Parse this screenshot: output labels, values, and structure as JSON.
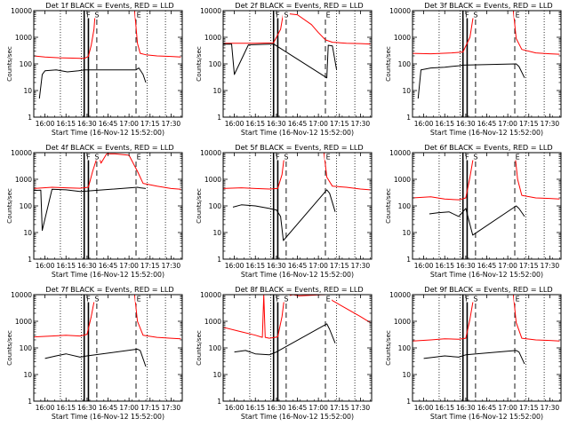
{
  "chart_data": [
    {
      "type": "line",
      "title": "Det 1f BLACK = Events, RED = LLD",
      "xlabel": "Start Time (16-Nov-12 15:52:00)",
      "ylabel": "Counts/sec",
      "yscale": "log",
      "ylim": [
        1,
        10000
      ],
      "ytick_labels": [
        "1",
        "10",
        "100",
        "1000",
        "10000"
      ],
      "xlim": [
        "15:52",
        "17:38"
      ],
      "xtick_labels": [
        "16:00",
        "16:15",
        "16:30",
        "16:45",
        "17:00",
        "17:15",
        "17:30"
      ],
      "markers": {
        "labels": [
          "F",
          "S",
          "E"
        ],
        "times": [
          "16:31",
          "16:37",
          "17:07"
        ],
        "solid_lines": [
          "16:28",
          "16:31"
        ],
        "dashed_lines": [
          "16:37",
          "17:05"
        ],
        "dotted_lines": [
          "16:11",
          "16:26",
          "17:13",
          "17:26"
        ]
      },
      "series": [
        {
          "color": "#ff0000",
          "x": [
            "15:52",
            "16:00",
            "16:10",
            "16:20",
            "16:28",
            "16:31",
            "16:33",
            "16:35",
            "16:36",
            "17:04",
            "17:06",
            "17:08",
            "17:12",
            "17:20",
            "17:30",
            "17:37"
          ],
          "y": [
            200,
            180,
            170,
            165,
            160,
            190,
            500,
            2000,
            10000,
            10000,
            600,
            250,
            220,
            200,
            190,
            180
          ]
        },
        {
          "color": "#000000",
          "x": [
            "15:56",
            "15:58",
            "16:00",
            "16:08",
            "16:16",
            "16:24",
            "16:28",
            "17:05",
            "17:07",
            "17:10",
            "17:12"
          ],
          "y": [
            5,
            40,
            55,
            60,
            50,
            55,
            60,
            60,
            70,
            40,
            20
          ]
        }
      ]
    },
    {
      "type": "line",
      "title": "Det 2f BLACK = Events, RED = LLD",
      "xlabel": "Start Time (16-Nov-12 15:52:00)",
      "ylabel": "Counts/sec",
      "yscale": "log",
      "ylim": [
        1,
        10000
      ],
      "ytick_labels": [
        "1",
        "10",
        "100",
        "1000",
        "10000"
      ],
      "xlim": [
        "15:52",
        "17:38"
      ],
      "xtick_labels": [
        "16:00",
        "16:15",
        "16:30",
        "16:45",
        "17:00",
        "17:15",
        "17:30"
      ],
      "markers": {
        "labels": [
          "F",
          "S",
          "E"
        ],
        "times": [
          "16:31",
          "16:37",
          "17:07"
        ],
        "solid_lines": [
          "16:28",
          "16:31"
        ],
        "dashed_lines": [
          "16:37",
          "17:05"
        ],
        "dotted_lines": [
          "16:11",
          "16:26",
          "17:13",
          "17:26"
        ]
      },
      "series": [
        {
          "color": "#ff0000",
          "x": [
            "15:52",
            "16:00",
            "16:15",
            "16:28",
            "16:33",
            "16:35",
            "16:45",
            "16:55",
            "17:00",
            "17:05",
            "17:10",
            "17:20",
            "17:30",
            "17:37"
          ],
          "y": [
            600,
            600,
            600,
            620,
            2000,
            8000,
            7000,
            3000,
            1500,
            800,
            650,
            600,
            580,
            560
          ]
        },
        {
          "color": "#000000",
          "x": [
            "15:52",
            "15:58",
            "16:00",
            "16:10",
            "16:20",
            "16:28",
            "17:06",
            "17:07",
            "17:10",
            "17:13"
          ],
          "y": [
            550,
            560,
            40,
            520,
            540,
            560,
            30,
            500,
            470,
            60
          ]
        }
      ]
    },
    {
      "type": "line",
      "title": "Det 3f BLACK = Events, RED = LLD",
      "xlabel": "Start Time (16-Nov-12 15:52:00)",
      "ylabel": "Counts/sec",
      "yscale": "log",
      "ylim": [
        1,
        10000
      ],
      "ytick_labels": [
        "1",
        "10",
        "100",
        "1000",
        "10000"
      ],
      "xlim": [
        "15:52",
        "17:38"
      ],
      "xtick_labels": [
        "16:00",
        "16:15",
        "16:30",
        "16:45",
        "17:00",
        "17:15",
        "17:30"
      ],
      "markers": {
        "labels": [
          "F",
          "S",
          "E"
        ],
        "times": [
          "16:31",
          "16:37",
          "17:07"
        ],
        "solid_lines": [
          "16:28",
          "16:31"
        ],
        "dashed_lines": [
          "16:37",
          "17:05"
        ],
        "dotted_lines": [
          "16:11",
          "16:26",
          "17:13",
          "17:26"
        ]
      },
      "series": [
        {
          "color": "#ff0000",
          "x": [
            "15:52",
            "16:05",
            "16:20",
            "16:28",
            "16:33",
            "16:36",
            "17:04",
            "17:06",
            "17:10",
            "17:20",
            "17:30",
            "17:37"
          ],
          "y": [
            250,
            240,
            260,
            280,
            1000,
            10000,
            10000,
            900,
            350,
            260,
            240,
            230
          ]
        },
        {
          "color": "#000000",
          "x": [
            "15:56",
            "15:58",
            "16:05",
            "16:15",
            "16:25",
            "16:28",
            "17:06",
            "17:08",
            "17:12"
          ],
          "y": [
            5,
            60,
            70,
            75,
            85,
            90,
            100,
            80,
            30
          ]
        }
      ]
    },
    {
      "type": "line",
      "title": "Det 4f BLACK = Events, RED = LLD",
      "xlabel": "Start Time (16-Nov-12 15:52:00)",
      "ylabel": "Counts/sec",
      "yscale": "log",
      "ylim": [
        1,
        10000
      ],
      "ytick_labels": [
        "1",
        "10",
        "100",
        "1000",
        "10000"
      ],
      "xlim": [
        "15:52",
        "17:38"
      ],
      "xtick_labels": [
        "16:00",
        "16:15",
        "16:30",
        "16:45",
        "17:00",
        "17:15",
        "17:30"
      ],
      "markers": {
        "labels": [
          "F",
          "S",
          "E"
        ],
        "times": [
          "16:31",
          "16:37",
          "17:07"
        ],
        "solid_lines": [
          "16:28",
          "16:31"
        ],
        "dashed_lines": [
          "16:37",
          "17:05"
        ],
        "dotted_lines": [
          "16:11",
          "16:26",
          "17:13",
          "17:26"
        ]
      },
      "series": [
        {
          "color": "#ff0000",
          "x": [
            "15:52",
            "16:05",
            "16:15",
            "16:25",
            "16:31",
            "16:34",
            "16:38",
            "16:40",
            "16:44",
            "16:50",
            "17:00",
            "17:06",
            "17:10",
            "17:20",
            "17:30",
            "17:37"
          ],
          "y": [
            450,
            500,
            480,
            460,
            500,
            2000,
            9000,
            4000,
            9000,
            9000,
            8000,
            2000,
            700,
            550,
            450,
            420
          ]
        },
        {
          "color": "#000000",
          "x": [
            "15:52",
            "15:57",
            "15:58",
            "16:05",
            "16:15",
            "16:25",
            "16:30",
            "17:06",
            "17:08",
            "17:12"
          ],
          "y": [
            380,
            390,
            12,
            420,
            400,
            350,
            360,
            500,
            480,
            450
          ]
        }
      ]
    },
    {
      "type": "line",
      "title": "Det 5f BLACK = Events, RED = LLD",
      "xlabel": "Start Time (16-Nov-12 15:52:00)",
      "ylabel": "Counts/sec",
      "yscale": "log",
      "ylim": [
        1,
        10000
      ],
      "ytick_labels": [
        "1",
        "10",
        "100",
        "1000",
        "10000"
      ],
      "xlim": [
        "15:52",
        "17:38"
      ],
      "xtick_labels": [
        "16:00",
        "16:15",
        "16:30",
        "16:45",
        "17:00",
        "17:15",
        "17:30"
      ],
      "markers": {
        "labels": [
          "F",
          "S",
          "E"
        ],
        "times": [
          "16:31",
          "16:37",
          "17:07"
        ],
        "solid_lines": [
          "16:28",
          "16:31"
        ],
        "dashed_lines": [
          "16:37",
          "17:05"
        ],
        "dotted_lines": [
          "16:11",
          "16:26",
          "17:13",
          "17:26"
        ]
      },
      "series": [
        {
          "color": "#ff0000",
          "x": [
            "15:52",
            "16:05",
            "16:15",
            "16:25",
            "16:31",
            "16:34",
            "16:36",
            "17:04",
            "17:06",
            "17:10",
            "17:20",
            "17:30",
            "17:37"
          ],
          "y": [
            450,
            480,
            450,
            430,
            450,
            1500,
            10000,
            10000,
            1200,
            550,
            500,
            430,
            400
          ]
        },
        {
          "color": "#000000",
          "x": [
            "15:59",
            "16:05",
            "16:15",
            "16:25",
            "16:30",
            "16:33",
            "16:35",
            "17:06",
            "17:08",
            "17:12"
          ],
          "y": [
            90,
            110,
            100,
            80,
            70,
            40,
            5,
            400,
            300,
            60
          ]
        }
      ]
    },
    {
      "type": "line",
      "title": "Det 6f BLACK = Events, RED = LLD",
      "xlabel": "Start Time (16-Nov-12 15:52:00)",
      "ylabel": "Counts/sec",
      "yscale": "log",
      "ylim": [
        1,
        10000
      ],
      "ytick_labels": [
        "1",
        "10",
        "100",
        "1000",
        "10000"
      ],
      "xlim": [
        "15:52",
        "17:38"
      ],
      "xtick_labels": [
        "16:00",
        "16:15",
        "16:30",
        "16:45",
        "17:00",
        "17:15",
        "17:30"
      ],
      "markers": {
        "labels": [
          "F",
          "S",
          "E"
        ],
        "times": [
          "16:31",
          "16:37",
          "17:07"
        ],
        "solid_lines": [
          "16:28",
          "16:31"
        ],
        "dashed_lines": [
          "16:37",
          "17:05"
        ],
        "dotted_lines": [
          "16:11",
          "16:26",
          "17:13",
          "17:26"
        ]
      },
      "series": [
        {
          "color": "#ff0000",
          "x": [
            "15:52",
            "16:05",
            "16:15",
            "16:25",
            "16:30",
            "16:33",
            "16:36",
            "17:05",
            "17:07",
            "17:10",
            "17:20",
            "17:30",
            "17:37"
          ],
          "y": [
            200,
            220,
            180,
            170,
            200,
            1200,
            10000,
            10000,
            1000,
            250,
            200,
            190,
            180
          ]
        },
        {
          "color": "#000000",
          "x": [
            "16:04",
            "16:10",
            "16:18",
            "16:25",
            "16:30",
            "16:33",
            "16:35",
            "17:06",
            "17:08",
            "17:12"
          ],
          "y": [
            50,
            55,
            60,
            40,
            80,
            20,
            8,
            100,
            80,
            40
          ]
        }
      ]
    },
    {
      "type": "line",
      "title": "Det 7f BLACK = Events, RED = LLD",
      "xlabel": "Start Time (16-Nov-12 15:52:00)",
      "ylabel": "Counts/sec",
      "yscale": "log",
      "ylim": [
        1,
        10000
      ],
      "ytick_labels": [
        "1",
        "10",
        "100",
        "1000",
        "10000"
      ],
      "xlim": [
        "15:52",
        "17:38"
      ],
      "xtick_labels": [
        "16:00",
        "16:15",
        "16:30",
        "16:45",
        "17:00",
        "17:15",
        "17:30"
      ],
      "markers": {
        "labels": [
          "F",
          "S",
          "E"
        ],
        "times": [
          "16:31",
          "16:37",
          "17:07"
        ],
        "solid_lines": [
          "16:28",
          "16:31"
        ],
        "dashed_lines": [
          "16:37",
          "17:05"
        ],
        "dotted_lines": [
          "16:11",
          "16:26",
          "17:13",
          "17:26"
        ]
      },
      "series": [
        {
          "color": "#ff0000",
          "x": [
            "15:52",
            "16:05",
            "16:15",
            "16:25",
            "16:30",
            "16:33",
            "16:36",
            "17:04",
            "17:06",
            "17:10",
            "17:20",
            "17:30",
            "17:37"
          ],
          "y": [
            260,
            280,
            300,
            280,
            320,
            1500,
            10000,
            10000,
            1000,
            300,
            250,
            230,
            220
          ]
        },
        {
          "color": "#000000",
          "x": [
            "16:00",
            "16:08",
            "16:15",
            "16:25",
            "16:30",
            "17:06",
            "17:08",
            "17:12"
          ],
          "y": [
            40,
            50,
            60,
            45,
            50,
            90,
            80,
            20
          ]
        }
      ]
    },
    {
      "type": "line",
      "title": "Det 8f BLACK = Events, RED = LLD",
      "xlabel": "Start Time (16-Nov-12 15:52:00)",
      "ylabel": "Counts/sec",
      "yscale": "log",
      "ylim": [
        1,
        10000
      ],
      "ytick_labels": [
        "1",
        "10",
        "100",
        "1000",
        "10000"
      ],
      "xlim": [
        "15:52",
        "17:38"
      ],
      "xtick_labels": [
        "16:00",
        "16:15",
        "16:30",
        "16:45",
        "17:00",
        "17:15",
        "17:30"
      ],
      "markers": {
        "labels": [
          "F",
          "S",
          "E"
        ],
        "times": [
          "16:31",
          "16:37",
          "17:07"
        ],
        "solid_lines": [
          "16:28",
          "16:31"
        ],
        "dashed_lines": [
          "16:37",
          "17:05"
        ],
        "dotted_lines": [
          "16:11",
          "16:26",
          "17:13",
          "17:26"
        ]
      },
      "series": [
        {
          "color": "#ff0000",
          "x": [
            "15:52",
            "16:05",
            "16:15",
            "16:20",
            "16:21",
            "16:22",
            "16:25",
            "16:31",
            "16:34",
            "16:36",
            "16:38",
            "16:42",
            "16:46",
            "17:04",
            "17:06",
            "17:10",
            "17:20",
            "17:30",
            "17:37"
          ],
          "y": [
            600,
            400,
            300,
            250,
            10000,
            250,
            230,
            260,
            1500,
            10000,
            9000,
            10000,
            9000,
            10000,
            9500,
            6000,
            3000,
            1500,
            900
          ]
        },
        {
          "color": "#000000",
          "x": [
            "16:00",
            "16:08",
            "16:15",
            "16:25",
            "16:30",
            "17:06",
            "17:08",
            "17:12"
          ],
          "y": [
            70,
            80,
            60,
            55,
            70,
            800,
            500,
            150
          ]
        }
      ]
    },
    {
      "type": "line",
      "title": "Det 9f BLACK = Events, RED = LLD",
      "xlabel": "Start Time (16-Nov-12 15:52:00)",
      "ylabel": "Counts/sec",
      "yscale": "log",
      "ylim": [
        1,
        10000
      ],
      "ytick_labels": [
        "1",
        "10",
        "100",
        "1000",
        "10000"
      ],
      "xlim": [
        "15:52",
        "17:38"
      ],
      "xtick_labels": [
        "16:00",
        "16:15",
        "16:30",
        "16:45",
        "17:00",
        "17:15",
        "17:30"
      ],
      "markers": {
        "labels": [
          "F",
          "S",
          "E"
        ],
        "times": [
          "16:31",
          "16:37",
          "17:07"
        ],
        "solid_lines": [
          "16:28",
          "16:31"
        ],
        "dashed_lines": [
          "16:37",
          "17:05"
        ],
        "dotted_lines": [
          "16:11",
          "16:26",
          "17:13",
          "17:26"
        ]
      },
      "series": [
        {
          "color": "#ff0000",
          "x": [
            "15:52",
            "16:05",
            "16:15",
            "16:25",
            "16:30",
            "16:33",
            "16:36",
            "17:04",
            "17:06",
            "17:10",
            "17:20",
            "17:30",
            "17:37"
          ],
          "y": [
            180,
            200,
            220,
            210,
            230,
            1200,
            10000,
            10000,
            900,
            230,
            200,
            190,
            180
          ]
        },
        {
          "color": "#000000",
          "x": [
            "16:00",
            "16:08",
            "16:15",
            "16:25",
            "16:30",
            "17:06",
            "17:08",
            "17:12"
          ],
          "y": [
            40,
            45,
            50,
            45,
            55,
            80,
            70,
            25
          ]
        }
      ]
    }
  ]
}
